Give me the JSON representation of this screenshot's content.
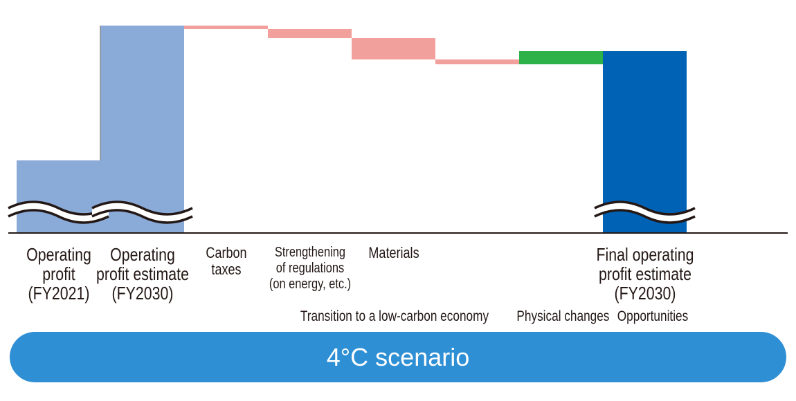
{
  "chart_data": {
    "type": "waterfall",
    "axis": {
      "ylim": [
        0,
        310
      ],
      "grid": false,
      "broken_axis": true
    },
    "steps": [
      {
        "key": "operating_profit_fy2021",
        "kind": "total",
        "value": 105,
        "color": "#8aaad8",
        "label_lines": [
          "Operating",
          "profit",
          "(FY2021)"
        ]
      },
      {
        "key": "operating_profit_estimate_fy2030",
        "kind": "total",
        "value": 300,
        "color": "#8aaad8",
        "label_lines": [
          "Operating",
          "profit estimate",
          "(FY2030)"
        ]
      },
      {
        "key": "carbon_taxes",
        "kind": "delta",
        "value": -5,
        "color": "#f2a09b",
        "label_lines": [
          "Carbon",
          "taxes"
        ]
      },
      {
        "key": "strengthening_of_regulations",
        "kind": "delta",
        "value": -13,
        "color": "#f2a09b",
        "label_lines": [
          "Strengthening",
          "of regulations",
          "(on energy, etc.)"
        ]
      },
      {
        "key": "materials",
        "kind": "delta",
        "value": -31,
        "color": "#f2a09b",
        "label_lines": [
          "Materials"
        ]
      },
      {
        "key": "physical_changes",
        "kind": "delta",
        "value": -7,
        "color": "#f2a09b",
        "label_lines": []
      },
      {
        "key": "opportunities",
        "kind": "delta",
        "value": 19,
        "color": "#2db24a",
        "label_lines": []
      },
      {
        "key": "final_operating_profit_estimate_fy2030",
        "kind": "total",
        "value": 263,
        "color": "#0062b5",
        "label_lines": [
          "Final operating",
          "profit estimate",
          "(FY2030)"
        ]
      }
    ],
    "group_labels": {
      "transition": "Transition to a low-carbon economy",
      "physical": "Physical changes",
      "opportunities": "Opportunities"
    }
  },
  "scenario_label": "4°C scenario"
}
